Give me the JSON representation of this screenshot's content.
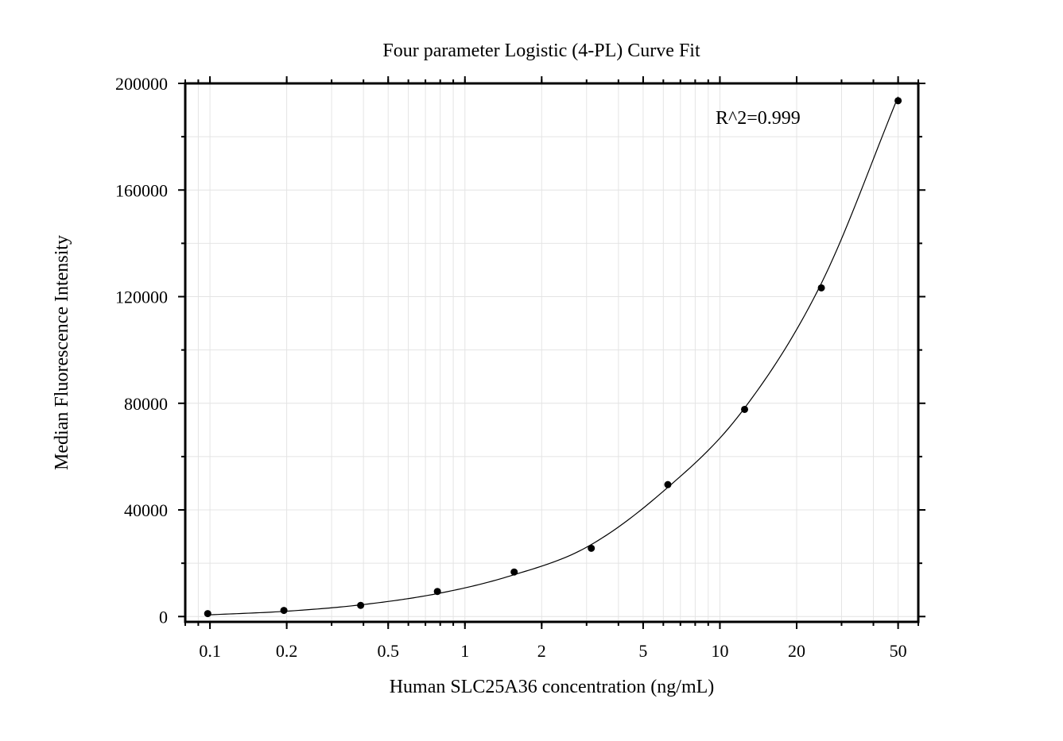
{
  "chart_data": {
    "type": "scatter",
    "title": "Four parameter Logistic (4-PL) Curve Fit",
    "xlabel": "Human SLC25A36 concentration (ng/mL)",
    "ylabel": "Median Fluorescence Intensity",
    "x_scale": "log",
    "xlim": [
      0.08,
      60
    ],
    "ylim": [
      -2000,
      200000
    ],
    "x_ticks": [
      0.1,
      0.2,
      0.5,
      1,
      2,
      5,
      10,
      20,
      50
    ],
    "x_tick_labels": [
      "0.1",
      "0.2",
      "0.5",
      "1",
      "2",
      "5",
      "10",
      "20",
      "50"
    ],
    "y_ticks": [
      0,
      40000,
      80000,
      120000,
      160000,
      200000
    ],
    "y_tick_labels": [
      "0",
      "40000",
      "80000",
      "120000",
      "160000",
      "200000"
    ],
    "grid": true,
    "annotation": "R^2=0.999",
    "series": [
      {
        "marker": "circle",
        "color": "#000000",
        "points": [
          {
            "x": 0.098,
            "y": 1100
          },
          {
            "x": 0.195,
            "y": 2300
          },
          {
            "x": 0.39,
            "y": 4200
          },
          {
            "x": 0.78,
            "y": 9400
          },
          {
            "x": 1.56,
            "y": 16700
          },
          {
            "x": 3.13,
            "y": 25600
          },
          {
            "x": 6.25,
            "y": 49500
          },
          {
            "x": 12.5,
            "y": 77700
          },
          {
            "x": 25,
            "y": 123300
          },
          {
            "x": 50,
            "y": 193500
          }
        ]
      }
    ],
    "fit_curve": {
      "model": "4-PL",
      "color": "#000000",
      "points": [
        {
          "x": 0.1,
          "y": 650
        },
        {
          "x": 0.2,
          "y": 2000
        },
        {
          "x": 0.4,
          "y": 4500
        },
        {
          "x": 0.8,
          "y": 8800
        },
        {
          "x": 1.5,
          "y": 15200
        },
        {
          "x": 3,
          "y": 26000
        },
        {
          "x": 6,
          "y": 47000
        },
        {
          "x": 12,
          "y": 76000
        },
        {
          "x": 25,
          "y": 125000
        },
        {
          "x": 50,
          "y": 195000
        }
      ]
    }
  }
}
